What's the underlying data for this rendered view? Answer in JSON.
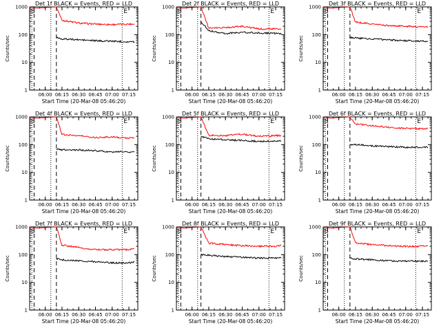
{
  "chart_data": [
    {
      "type": "line",
      "title": "Det 1f BLACK = Events, RED = LLD",
      "ylabel": "Counts/sec",
      "xlabel": "Start Time (20-Mar-08 05:46:20)",
      "yscale": "log",
      "ylim": [
        1,
        1000
      ],
      "ytick_labels": [
        "1000",
        "100",
        "10",
        "1"
      ],
      "xtick_labels": [
        "06:00",
        "06:15",
        "06:30",
        "06:45",
        "07:00",
        "07:15"
      ],
      "markers": [
        "S",
        "E"
      ],
      "series": [
        {
          "color": "#ff0000",
          "x": [
            "05:46",
            "05:52",
            "06:10",
            "06:15",
            "06:30",
            "06:45",
            "07:00",
            "07:15",
            "07:20"
          ],
          "values": [
            1000,
            900,
            1000,
            330,
            260,
            240,
            230,
            240,
            240
          ]
        },
        {
          "color": "#000000",
          "x": [
            "06:10",
            "06:15",
            "06:30",
            "06:45",
            "07:00",
            "07:15",
            "07:20"
          ],
          "values": [
            80,
            70,
            65,
            60,
            58,
            55,
            55
          ]
        }
      ]
    },
    {
      "type": "line",
      "title": "Det 2f BLACK = Events, RED = LLD",
      "ylabel": "Counts/sec",
      "xlabel": "Start Time (20-Mar-08 05:46:20)",
      "yscale": "log",
      "ylim": [
        1,
        1000
      ],
      "ytick_labels": [
        "1000",
        "100",
        "10",
        "1"
      ],
      "xtick_labels": [
        "06:00",
        "06:15",
        "06:30",
        "06:45",
        "07:00",
        "07:15"
      ],
      "markers": [
        "S",
        "E"
      ],
      "series": [
        {
          "color": "#ff0000",
          "x": [
            "05:46",
            "05:52",
            "06:08",
            "06:15",
            "06:30",
            "06:45",
            "07:00",
            "07:15",
            "07:20"
          ],
          "values": [
            1000,
            900,
            1000,
            170,
            180,
            200,
            160,
            160,
            155
          ]
        },
        {
          "color": "#000000",
          "x": [
            "06:08",
            "06:15",
            "06:30",
            "06:45",
            "07:00",
            "07:15",
            "07:20"
          ],
          "values": [
            300,
            140,
            110,
            120,
            115,
            110,
            105
          ]
        }
      ]
    },
    {
      "type": "line",
      "title": "Det 3f BLACK = Events, RED = LLD",
      "ylabel": "Counts/sec",
      "xlabel": "Start Time (20-Mar-08 05:46:20)",
      "yscale": "log",
      "ylim": [
        1,
        1000
      ],
      "ytick_labels": [
        "1000",
        "100",
        "10",
        "1"
      ],
      "xtick_labels": [
        "06:00",
        "06:15",
        "06:30",
        "06:45",
        "07:00",
        "07:15"
      ],
      "markers": [
        "S",
        "E"
      ],
      "series": [
        {
          "color": "#ff0000",
          "x": [
            "05:46",
            "05:52",
            "06:10",
            "06:15",
            "06:30",
            "06:45",
            "07:00",
            "07:15",
            "07:20"
          ],
          "values": [
            1000,
            900,
            1000,
            280,
            240,
            210,
            200,
            190,
            190
          ]
        },
        {
          "color": "#000000",
          "x": [
            "06:10",
            "06:15",
            "06:30",
            "06:45",
            "07:00",
            "07:15",
            "07:20"
          ],
          "values": [
            80,
            75,
            70,
            65,
            60,
            58,
            58
          ]
        }
      ]
    },
    {
      "type": "line",
      "title": "Det 4f BLACK = Events, RED = LLD",
      "ylabel": "Counts/sec",
      "xlabel": "Start Time (20-Mar-08 05:46:20)",
      "yscale": "log",
      "ylim": [
        1,
        1000
      ],
      "ytick_labels": [
        "1000",
        "100",
        "10",
        "1"
      ],
      "xtick_labels": [
        "06:00",
        "06:15",
        "06:30",
        "06:45",
        "07:00",
        "07:15"
      ],
      "markers": [
        "S",
        "E"
      ],
      "series": [
        {
          "color": "#ff0000",
          "x": [
            "05:46",
            "05:52",
            "06:10",
            "06:15",
            "06:30",
            "06:45",
            "07:00",
            "07:15",
            "07:20"
          ],
          "values": [
            1000,
            900,
            1000,
            230,
            210,
            180,
            190,
            170,
            180
          ]
        },
        {
          "color": "#000000",
          "x": [
            "06:10",
            "06:15",
            "06:30",
            "06:45",
            "07:00",
            "07:15",
            "07:20"
          ],
          "values": [
            70,
            65,
            65,
            60,
            55,
            55,
            55
          ]
        }
      ]
    },
    {
      "type": "line",
      "title": "Det 5f BLACK = Events, RED = LLD",
      "ylabel": "Counts/sec",
      "xlabel": "Start Time (20-Mar-08 05:46:20)",
      "yscale": "log",
      "ylim": [
        1,
        1000
      ],
      "ytick_labels": [
        "1000",
        "100",
        "10",
        "1"
      ],
      "xtick_labels": [
        "06:00",
        "06:15",
        "06:30",
        "06:45",
        "07:00",
        "07:15"
      ],
      "markers": [
        "S",
        "E"
      ],
      "series": [
        {
          "color": "#ff0000",
          "x": [
            "05:46",
            "05:52",
            "06:08",
            "06:15",
            "06:30",
            "06:45",
            "07:00",
            "07:15",
            "07:20"
          ],
          "values": [
            1000,
            900,
            1000,
            220,
            210,
            240,
            200,
            210,
            210
          ]
        },
        {
          "color": "#000000",
          "x": [
            "06:08",
            "06:15",
            "06:30",
            "06:45",
            "07:00",
            "07:15",
            "07:20"
          ],
          "values": [
            200,
            160,
            150,
            140,
            130,
            135,
            135
          ]
        }
      ]
    },
    {
      "type": "line",
      "title": "Det 6f BLACK = Events, RED = LLD",
      "ylabel": "Counts/sec",
      "xlabel": "Start Time (20-Mar-08 05:46:20)",
      "yscale": "log",
      "ylim": [
        1,
        1000
      ],
      "ytick_labels": [
        "1000",
        "100",
        "10",
        "1"
      ],
      "xtick_labels": [
        "06:00",
        "06:15",
        "06:30",
        "06:45",
        "07:00",
        "07:15"
      ],
      "markers": [
        "S",
        "E"
      ],
      "series": [
        {
          "color": "#ff0000",
          "x": [
            "05:46",
            "05:52",
            "06:10",
            "06:15",
            "06:30",
            "06:45",
            "07:00",
            "07:15",
            "07:20"
          ],
          "values": [
            1000,
            900,
            1000,
            550,
            480,
            420,
            380,
            370,
            380
          ]
        },
        {
          "color": "#000000",
          "x": [
            "06:10",
            "06:15",
            "06:30",
            "06:45",
            "07:00",
            "07:15",
            "07:20"
          ],
          "values": [
            100,
            100,
            90,
            85,
            80,
            80,
            80
          ]
        }
      ]
    },
    {
      "type": "line",
      "title": "Det 7f BLACK = Events, RED = LLD",
      "ylabel": "Counts/sec",
      "xlabel": "Start Time (20-Mar-08 05:46:20)",
      "yscale": "log",
      "ylim": [
        1,
        1000
      ],
      "ytick_labels": [
        "1000",
        "100",
        "10",
        "1"
      ],
      "xtick_labels": [
        "06:00",
        "06:15",
        "06:30",
        "06:45",
        "07:00",
        "07:15"
      ],
      "markers": [
        "S",
        "E"
      ],
      "series": [
        {
          "color": "#ff0000",
          "x": [
            "05:46",
            "05:52",
            "06:10",
            "06:15",
            "06:30",
            "06:45",
            "07:00",
            "07:15",
            "07:20"
          ],
          "values": [
            1000,
            900,
            1000,
            220,
            180,
            150,
            150,
            150,
            170
          ]
        },
        {
          "color": "#000000",
          "x": [
            "06:10",
            "06:15",
            "06:30",
            "06:45",
            "07:00",
            "07:15",
            "07:20"
          ],
          "values": [
            70,
            65,
            60,
            55,
            50,
            50,
            55
          ]
        }
      ]
    },
    {
      "type": "line",
      "title": "Det 8f BLACK = Events, RED = LLD",
      "ylabel": "Counts/sec",
      "xlabel": "Start Time (20-Mar-08 05:46:20)",
      "yscale": "log",
      "ylim": [
        1,
        1000
      ],
      "ytick_labels": [
        "1000",
        "100",
        "10",
        "1"
      ],
      "xtick_labels": [
        "06:00",
        "06:15",
        "06:30",
        "06:45",
        "07:00",
        "07:15"
      ],
      "markers": [
        "S",
        "E"
      ],
      "series": [
        {
          "color": "#ff0000",
          "x": [
            "05:46",
            "05:52",
            "06:08",
            "06:15",
            "06:30",
            "06:45",
            "07:00",
            "07:15",
            "07:20"
          ],
          "values": [
            1000,
            900,
            1000,
            260,
            230,
            210,
            200,
            200,
            210
          ]
        },
        {
          "color": "#000000",
          "x": [
            "06:08",
            "06:15",
            "06:30",
            "06:45",
            "07:00",
            "07:15",
            "07:20"
          ],
          "values": [
            100,
            95,
            85,
            80,
            75,
            75,
            75
          ]
        }
      ]
    },
    {
      "type": "line",
      "title": "Det 9f BLACK = Events, RED = LLD",
      "ylabel": "Counts/sec",
      "xlabel": "Start Time (20-Mar-08 05:46:20)",
      "yscale": "log",
      "ylim": [
        1,
        1000
      ],
      "ytick_labels": [
        "1000",
        "100",
        "10",
        "1"
      ],
      "xtick_labels": [
        "06:00",
        "06:15",
        "06:30",
        "06:45",
        "07:00",
        "07:15"
      ],
      "markers": [
        "S",
        "E"
      ],
      "series": [
        {
          "color": "#ff0000",
          "x": [
            "05:46",
            "05:52",
            "06:10",
            "06:15",
            "06:30",
            "06:45",
            "07:00",
            "07:15",
            "07:20"
          ],
          "values": [
            1000,
            900,
            1000,
            270,
            230,
            210,
            200,
            200,
            210
          ]
        },
        {
          "color": "#000000",
          "x": [
            "06:10",
            "06:15",
            "06:30",
            "06:45",
            "07:00",
            "07:15",
            "07:20"
          ],
          "values": [
            75,
            70,
            65,
            60,
            58,
            58,
            58
          ]
        }
      ]
    }
  ]
}
